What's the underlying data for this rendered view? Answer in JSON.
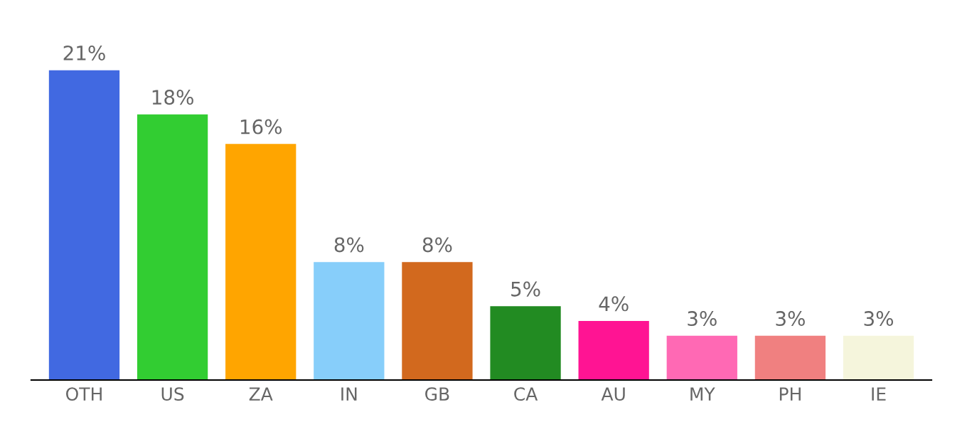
{
  "chart_data": {
    "type": "bar",
    "categories": [
      "OTH",
      "US",
      "ZA",
      "IN",
      "GB",
      "CA",
      "AU",
      "MY",
      "PH",
      "IE"
    ],
    "values": [
      21,
      18,
      16,
      8,
      8,
      5,
      4,
      3,
      3,
      3
    ],
    "colors": [
      "#4169e1",
      "#32cd32",
      "#ffa500",
      "#87cefa",
      "#d2691e",
      "#228b22",
      "#ff1493",
      "#ff69b4",
      "#f08080",
      "#f5f5dc"
    ],
    "value_labels": [
      "21%",
      "18%",
      "16%",
      "8%",
      "8%",
      "5%",
      "4%",
      "3%",
      "3%",
      "3%"
    ],
    "grid": false,
    "legend": false
  }
}
